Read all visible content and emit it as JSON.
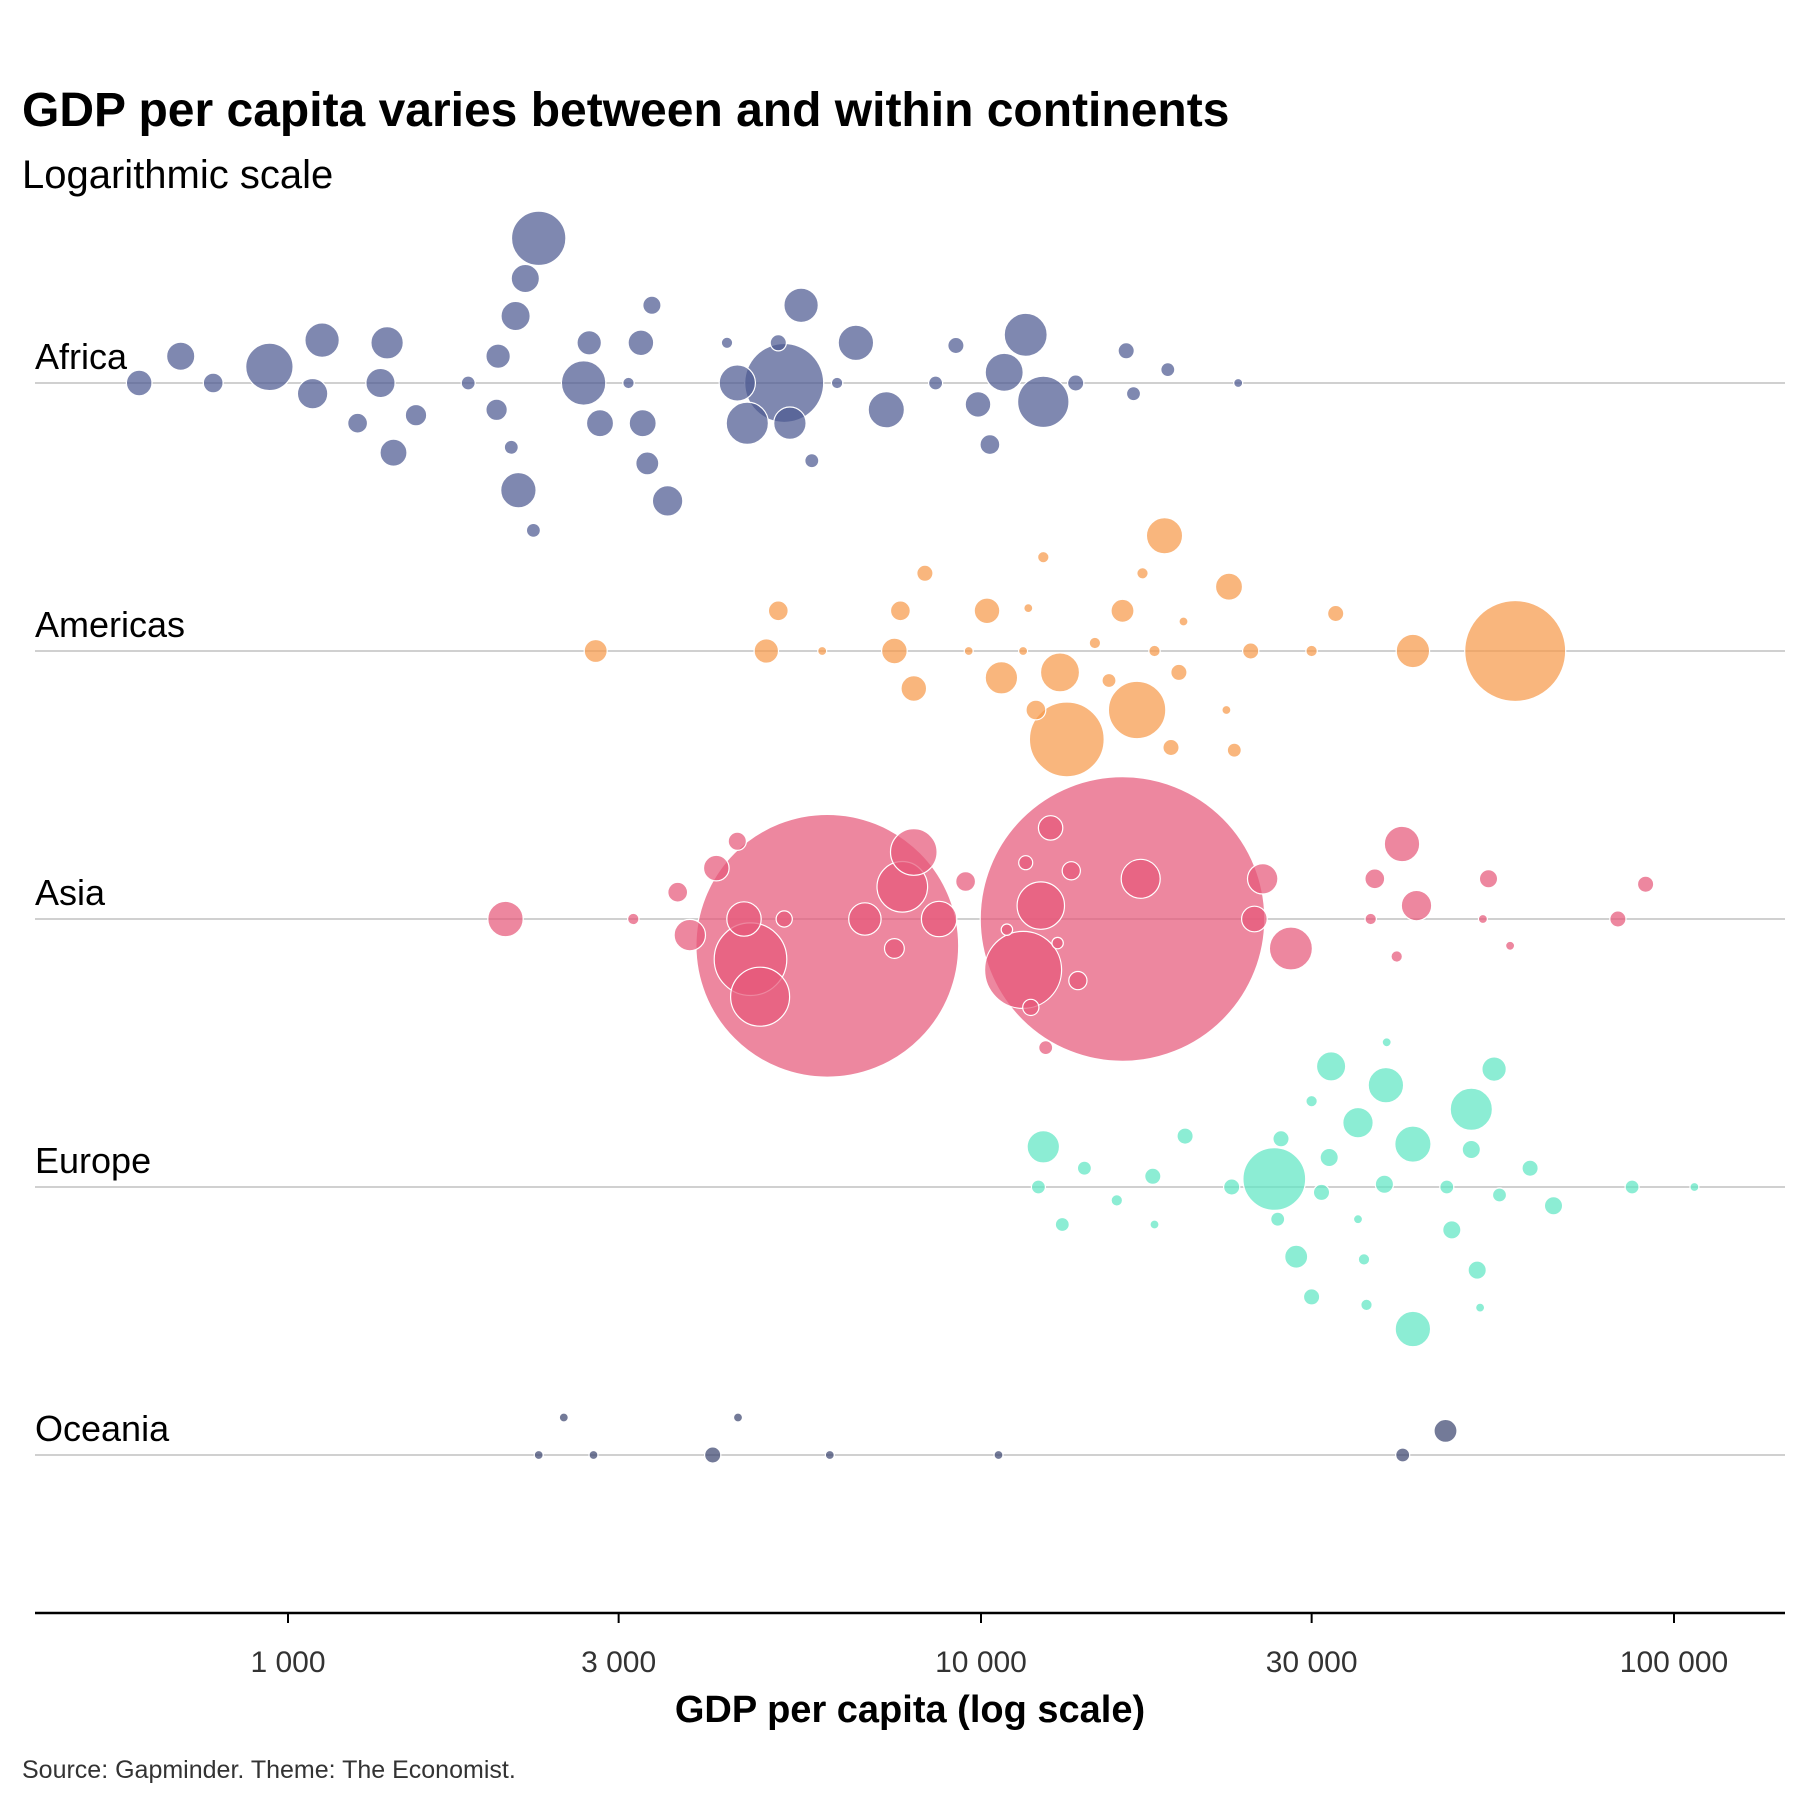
{
  "chart_data": {
    "type": "scatter",
    "title": "GDP per capita varies between and within continents",
    "subtitle": "Logarithmic scale",
    "xlabel": "GDP per capita (log scale)",
    "source": "Source: Gapminder. Theme: The Economist.",
    "x_scale": "log",
    "xlim": [
      360,
      140000
    ],
    "x_ticks": [
      {
        "value": 1000,
        "label": "1 000"
      },
      {
        "value": 3000,
        "label": "3 000"
      },
      {
        "value": 10000,
        "label": "10 000"
      },
      {
        "value": 30000,
        "label": "30 000"
      },
      {
        "value": 100000,
        "label": "100 000"
      }
    ],
    "grid": true,
    "legend": "none",
    "categories": [
      "Africa",
      "Americas",
      "Asia",
      "Europe",
      "Oceania"
    ],
    "colors": {
      "Africa": "#4e5a92",
      "Americas": "#f79a4b",
      "Asia": "#e6597a",
      "Europe": "#5fe6c4",
      "Oceania": "#3d4770"
    },
    "series": [
      {
        "name": "Africa",
        "points": [
          {
            "x": 610,
            "offset": 0.0,
            "size": 1
          },
          {
            "x": 700,
            "offset": 0.1,
            "size": 1.2
          },
          {
            "x": 780,
            "offset": 0.0,
            "size": 0.6
          },
          {
            "x": 940,
            "offset": 0.06,
            "size": 3.4
          },
          {
            "x": 1120,
            "offset": 0.16,
            "size": 1.8
          },
          {
            "x": 1085,
            "offset": -0.04,
            "size": 1.4
          },
          {
            "x": 1260,
            "offset": -0.15,
            "size": 0.6
          },
          {
            "x": 1390,
            "offset": 0.15,
            "size": 1.6
          },
          {
            "x": 1360,
            "offset": 0.0,
            "size": 1.3
          },
          {
            "x": 1420,
            "offset": -0.26,
            "size": 1.1
          },
          {
            "x": 1530,
            "offset": -0.12,
            "size": 0.7
          },
          {
            "x": 1820,
            "offset": 0.0,
            "size": 0.3
          },
          {
            "x": 2000,
            "offset": -0.1,
            "size": 0.7
          },
          {
            "x": 2010,
            "offset": 0.1,
            "size": 0.9
          },
          {
            "x": 2100,
            "offset": -0.24,
            "size": 0.3
          },
          {
            "x": 2130,
            "offset": 0.25,
            "size": 1.3
          },
          {
            "x": 2150,
            "offset": -0.4,
            "size": 1.9
          },
          {
            "x": 2200,
            "offset": 0.39,
            "size": 1.2
          },
          {
            "x": 2260,
            "offset": -0.55,
            "size": 0.3
          },
          {
            "x": 2300,
            "offset": 0.54,
            "size": 4.5
          },
          {
            "x": 2670,
            "offset": 0.0,
            "size": 3.0
          },
          {
            "x": 2720,
            "offset": 0.15,
            "size": 0.9
          },
          {
            "x": 2820,
            "offset": -0.15,
            "size": 1.1
          },
          {
            "x": 3100,
            "offset": 0.0,
            "size": 0.2
          },
          {
            "x": 3230,
            "offset": 0.15,
            "size": 1.0
          },
          {
            "x": 3250,
            "offset": -0.15,
            "size": 1.1
          },
          {
            "x": 3300,
            "offset": -0.3,
            "size": 0.8
          },
          {
            "x": 3350,
            "offset": 0.29,
            "size": 0.5
          },
          {
            "x": 3530,
            "offset": -0.44,
            "size": 1.4
          },
          {
            "x": 4300,
            "offset": 0.15,
            "size": 0.2
          },
          {
            "x": 4450,
            "offset": 0.0,
            "size": 2.0
          },
          {
            "x": 4600,
            "offset": -0.15,
            "size": 2.7
          },
          {
            "x": 5100,
            "offset": 0.15,
            "size": 0.4
          },
          {
            "x": 5200,
            "offset": 0.0,
            "size": 9.5
          },
          {
            "x": 5300,
            "offset": -0.15,
            "size": 1.6
          },
          {
            "x": 5500,
            "offset": 0.29,
            "size": 1.8
          },
          {
            "x": 5700,
            "offset": -0.29,
            "size": 0.3
          },
          {
            "x": 6200,
            "offset": 0.0,
            "size": 0.2
          },
          {
            "x": 6600,
            "offset": 0.15,
            "size": 1.9
          },
          {
            "x": 7300,
            "offset": -0.1,
            "size": 2.0
          },
          {
            "x": 8600,
            "offset": 0.0,
            "size": 0.3
          },
          {
            "x": 9200,
            "offset": 0.14,
            "size": 0.4
          },
          {
            "x": 9900,
            "offset": -0.08,
            "size": 1.0
          },
          {
            "x": 10300,
            "offset": -0.23,
            "size": 0.6
          },
          {
            "x": 10800,
            "offset": 0.04,
            "size": 2.2
          },
          {
            "x": 11600,
            "offset": 0.18,
            "size": 2.8
          },
          {
            "x": 12300,
            "offset": -0.07,
            "size": 4.0
          },
          {
            "x": 13700,
            "offset": 0.0,
            "size": 0.4
          },
          {
            "x": 16200,
            "offset": 0.12,
            "size": 0.4
          },
          {
            "x": 16600,
            "offset": -0.04,
            "size": 0.3
          },
          {
            "x": 18600,
            "offset": 0.05,
            "size": 0.3
          },
          {
            "x": 23500,
            "offset": 0.0,
            "size": 0.1
          }
        ]
      },
      {
        "name": "Americas",
        "points": [
          {
            "x": 2780,
            "offset": 0.0,
            "size": 0.8
          },
          {
            "x": 4900,
            "offset": 0.0,
            "size": 0.9
          },
          {
            "x": 5100,
            "offset": 0.15,
            "size": 0.6
          },
          {
            "x": 5900,
            "offset": 0.0,
            "size": 0.1
          },
          {
            "x": 7500,
            "offset": 0.0,
            "size": 1.0
          },
          {
            "x": 7650,
            "offset": 0.15,
            "size": 0.6
          },
          {
            "x": 8000,
            "offset": -0.14,
            "size": 1.0
          },
          {
            "x": 8300,
            "offset": 0.29,
            "size": 0.4
          },
          {
            "x": 9600,
            "offset": 0.0,
            "size": 0.1
          },
          {
            "x": 10200,
            "offset": 0.15,
            "size": 1.0
          },
          {
            "x": 10700,
            "offset": -0.1,
            "size": 1.6
          },
          {
            "x": 11500,
            "offset": 0.0,
            "size": 0.1
          },
          {
            "x": 11700,
            "offset": 0.16,
            "size": 0.1
          },
          {
            "x": 12000,
            "offset": -0.22,
            "size": 0.6
          },
          {
            "x": 12300,
            "offset": 0.35,
            "size": 0.2
          },
          {
            "x": 13000,
            "offset": -0.08,
            "size": 2.3
          },
          {
            "x": 13300,
            "offset": -0.33,
            "size": 8.5
          },
          {
            "x": 14600,
            "offset": 0.03,
            "size": 0.2
          },
          {
            "x": 15300,
            "offset": -0.11,
            "size": 0.3
          },
          {
            "x": 16000,
            "offset": 0.15,
            "size": 0.8
          },
          {
            "x": 16800,
            "offset": -0.22,
            "size": 5.0
          },
          {
            "x": 17100,
            "offset": 0.29,
            "size": 0.2
          },
          {
            "x": 17800,
            "offset": 0.0,
            "size": 0.2
          },
          {
            "x": 18400,
            "offset": 0.43,
            "size": 2.0
          },
          {
            "x": 18800,
            "offset": -0.36,
            "size": 0.4
          },
          {
            "x": 19300,
            "offset": -0.08,
            "size": 0.4
          },
          {
            "x": 19600,
            "offset": 0.11,
            "size": 0.1
          },
          {
            "x": 22600,
            "offset": -0.22,
            "size": 0.1
          },
          {
            "x": 22800,
            "offset": 0.24,
            "size": 1.1
          },
          {
            "x": 23200,
            "offset": -0.37,
            "size": 0.3
          },
          {
            "x": 24500,
            "offset": 0.0,
            "size": 0.4
          },
          {
            "x": 30000,
            "offset": 0.0,
            "size": 0.2
          },
          {
            "x": 32500,
            "offset": 0.14,
            "size": 0.4
          },
          {
            "x": 42000,
            "offset": 0.0,
            "size": 1.7
          },
          {
            "x": 59000,
            "offset": 0.0,
            "size": 15.5
          }
        ]
      },
      {
        "name": "Asia",
        "points": [
          {
            "x": 2060,
            "offset": 0.0,
            "size": 1.9
          },
          {
            "x": 3150,
            "offset": 0.0,
            "size": 0.2
          },
          {
            "x": 3650,
            "offset": 0.1,
            "size": 0.6
          },
          {
            "x": 3800,
            "offset": -0.06,
            "size": 1.5
          },
          {
            "x": 4150,
            "offset": 0.19,
            "size": 1.0
          },
          {
            "x": 4450,
            "offset": 0.29,
            "size": 0.5
          },
          {
            "x": 4550,
            "offset": 0.0,
            "size": 1.8
          },
          {
            "x": 4650,
            "offset": -0.15,
            "size": 8.0
          },
          {
            "x": 4800,
            "offset": -0.29,
            "size": 5.3
          },
          {
            "x": 5200,
            "offset": 0.0,
            "size": 0.4
          },
          {
            "x": 6000,
            "offset": -0.1,
            "size": 105
          },
          {
            "x": 6800,
            "offset": 0.0,
            "size": 1.6
          },
          {
            "x": 7500,
            "offset": -0.11,
            "size": 0.6
          },
          {
            "x": 7700,
            "offset": 0.12,
            "size": 3.9
          },
          {
            "x": 8000,
            "offset": 0.25,
            "size": 3.3
          },
          {
            "x": 8700,
            "offset": 0.0,
            "size": 1.9
          },
          {
            "x": 9500,
            "offset": 0.14,
            "size": 0.6
          },
          {
            "x": 10900,
            "offset": -0.04,
            "size": 0.2
          },
          {
            "x": 11500,
            "offset": -0.19,
            "size": 9.0
          },
          {
            "x": 11600,
            "offset": 0.21,
            "size": 0.3
          },
          {
            "x": 11800,
            "offset": -0.33,
            "size": 0.4
          },
          {
            "x": 12200,
            "offset": 0.05,
            "size": 3.4
          },
          {
            "x": 12400,
            "offset": -0.48,
            "size": 0.3
          },
          {
            "x": 12600,
            "offset": 0.34,
            "size": 0.9
          },
          {
            "x": 12900,
            "offset": -0.09,
            "size": 0.2
          },
          {
            "x": 13500,
            "offset": 0.18,
            "size": 0.5
          },
          {
            "x": 13800,
            "offset": -0.23,
            "size": 0.5
          },
          {
            "x": 16000,
            "offset": 0.0,
            "size": 123
          },
          {
            "x": 17000,
            "offset": 0.15,
            "size": 2.3
          },
          {
            "x": 24800,
            "offset": 0.0,
            "size": 1.0
          },
          {
            "x": 25500,
            "offset": 0.15,
            "size": 1.4
          },
          {
            "x": 28000,
            "offset": -0.11,
            "size": 2.8
          },
          {
            "x": 36500,
            "offset": 0.0,
            "size": 0.2
          },
          {
            "x": 37000,
            "offset": 0.15,
            "size": 0.6
          },
          {
            "x": 39800,
            "offset": -0.14,
            "size": 0.2
          },
          {
            "x": 40500,
            "offset": 0.28,
            "size": 1.9
          },
          {
            "x": 42500,
            "offset": 0.05,
            "size": 1.4
          },
          {
            "x": 53000,
            "offset": 0.0,
            "size": 0.1
          },
          {
            "x": 54000,
            "offset": 0.15,
            "size": 0.5
          },
          {
            "x": 58000,
            "offset": -0.1,
            "size": 0.1
          },
          {
            "x": 83000,
            "offset": 0.0,
            "size": 0.4
          },
          {
            "x": 91000,
            "offset": 0.13,
            "size": 0.4
          }
        ]
      },
      {
        "name": "Europe",
        "points": [
          {
            "x": 12100,
            "offset": 0.0,
            "size": 0.3
          },
          {
            "x": 12300,
            "offset": 0.15,
            "size": 1.6
          },
          {
            "x": 13100,
            "offset": -0.14,
            "size": 0.3
          },
          {
            "x": 14100,
            "offset": 0.07,
            "size": 0.3
          },
          {
            "x": 15700,
            "offset": -0.05,
            "size": 0.2
          },
          {
            "x": 17700,
            "offset": 0.04,
            "size": 0.4
          },
          {
            "x": 17800,
            "offset": -0.14,
            "size": 0.1
          },
          {
            "x": 19700,
            "offset": 0.19,
            "size": 0.4
          },
          {
            "x": 23000,
            "offset": 0.0,
            "size": 0.4
          },
          {
            "x": 26800,
            "offset": -0.12,
            "size": 0.3
          },
          {
            "x": 26500,
            "offset": 0.03,
            "size": 6.0
          },
          {
            "x": 27100,
            "offset": 0.18,
            "size": 0.4
          },
          {
            "x": 28500,
            "offset": -0.26,
            "size": 0.8
          },
          {
            "x": 30000,
            "offset": -0.41,
            "size": 0.4
          },
          {
            "x": 30000,
            "offset": 0.32,
            "size": 0.2
          },
          {
            "x": 31000,
            "offset": -0.02,
            "size": 0.4
          },
          {
            "x": 31800,
            "offset": 0.11,
            "size": 0.5
          },
          {
            "x": 32000,
            "offset": 0.45,
            "size": 1.3
          },
          {
            "x": 35000,
            "offset": 0.24,
            "size": 1.4
          },
          {
            "x": 35000,
            "offset": -0.12,
            "size": 0.1
          },
          {
            "x": 35700,
            "offset": -0.27,
            "size": 0.2
          },
          {
            "x": 36000,
            "offset": -0.44,
            "size": 0.2
          },
          {
            "x": 38200,
            "offset": 0.01,
            "size": 0.5
          },
          {
            "x": 38400,
            "offset": 0.38,
            "size": 1.9
          },
          {
            "x": 38500,
            "offset": 0.54,
            "size": 0.1
          },
          {
            "x": 42000,
            "offset": 0.16,
            "size": 2.0
          },
          {
            "x": 42000,
            "offset": -0.53,
            "size": 1.9
          },
          {
            "x": 47000,
            "offset": 0.0,
            "size": 0.3
          },
          {
            "x": 47800,
            "offset": -0.16,
            "size": 0.5
          },
          {
            "x": 51000,
            "offset": 0.14,
            "size": 0.5
          },
          {
            "x": 51000,
            "offset": 0.29,
            "size": 2.7
          },
          {
            "x": 52000,
            "offset": -0.31,
            "size": 0.5
          },
          {
            "x": 52500,
            "offset": -0.45,
            "size": 0.1
          },
          {
            "x": 55000,
            "offset": 0.44,
            "size": 0.9
          },
          {
            "x": 56000,
            "offset": -0.03,
            "size": 0.3
          },
          {
            "x": 62000,
            "offset": 0.07,
            "size": 0.4
          },
          {
            "x": 67000,
            "offset": -0.07,
            "size": 0.5
          },
          {
            "x": 87000,
            "offset": 0.0,
            "size": 0.3
          },
          {
            "x": 107000,
            "offset": 0.0,
            "size": 0.1
          }
        ]
      },
      {
        "name": "Oceania",
        "points": [
          {
            "x": 2300,
            "offset": 0.0,
            "size": 0.1
          },
          {
            "x": 2500,
            "offset": 0.14,
            "size": 0.1
          },
          {
            "x": 2760,
            "offset": 0.0,
            "size": 0.1
          },
          {
            "x": 4100,
            "offset": 0.0,
            "size": 0.4
          },
          {
            "x": 4460,
            "offset": 0.14,
            "size": 0.05
          },
          {
            "x": 6050,
            "offset": 0.0,
            "size": 0.1
          },
          {
            "x": 10600,
            "offset": 0.0,
            "size": 0.1
          },
          {
            "x": 40600,
            "offset": 0.0,
            "size": 0.3
          },
          {
            "x": 46800,
            "offset": 0.09,
            "size": 0.8
          }
        ]
      }
    ]
  }
}
